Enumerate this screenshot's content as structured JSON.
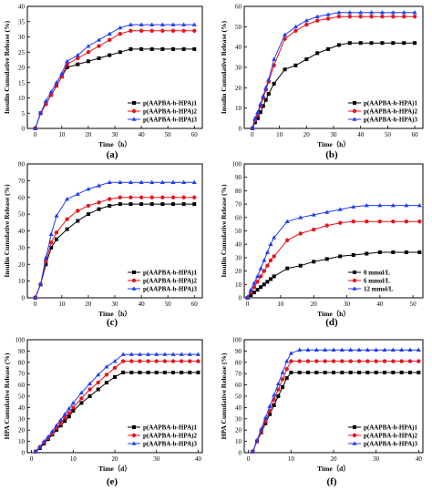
{
  "colors": {
    "series1": "#000000",
    "series2": "#e8141c",
    "series3": "#1f3df0"
  },
  "chart_data": [
    {
      "panel": "(a)",
      "type": "line",
      "xlabel": "Time（h）",
      "ylabel": "Insulin Cumulative Release (%)",
      "xlim": [
        -3,
        63
      ],
      "ylim": [
        0,
        40
      ],
      "xticks": [
        0,
        10,
        20,
        30,
        40,
        50,
        60
      ],
      "yticks": [
        0,
        5,
        10,
        15,
        20,
        25,
        30,
        35,
        40
      ],
      "legend_position": "bottom-right",
      "series": [
        {
          "name": "p(AAPBA-b-HPA)1",
          "marker": "square",
          "color": "#000000",
          "x": [
            0,
            2,
            4,
            6,
            8,
            10,
            12,
            16,
            20,
            24,
            28,
            32,
            36,
            40,
            44,
            48,
            52,
            56,
            60
          ],
          "y": [
            0,
            5,
            8,
            11,
            14,
            17,
            20,
            21,
            22,
            23,
            24,
            25,
            26,
            26,
            26,
            26,
            26,
            26,
            26
          ]
        },
        {
          "name": "p(AAPBA-b-HPA)2",
          "marker": "circle",
          "color": "#e8141c",
          "x": [
            0,
            2,
            4,
            6,
            8,
            10,
            12,
            16,
            20,
            24,
            28,
            32,
            36,
            40,
            44,
            48,
            52,
            56,
            60
          ],
          "y": [
            0,
            5,
            8,
            11,
            14,
            17,
            21,
            23,
            25,
            27,
            29,
            31,
            32,
            32,
            32,
            32,
            32,
            32,
            32
          ]
        },
        {
          "name": "p(AAPBA-b-HPA)3",
          "marker": "triangle",
          "color": "#1f3df0",
          "x": [
            0,
            2,
            4,
            6,
            8,
            10,
            12,
            16,
            20,
            24,
            28,
            32,
            36,
            40,
            44,
            48,
            52,
            56,
            60
          ],
          "y": [
            0,
            5,
            9,
            12,
            15,
            18,
            22,
            24,
            27,
            29,
            31,
            33,
            34,
            34,
            34,
            34,
            34,
            34,
            34
          ]
        }
      ]
    },
    {
      "panel": "(b)",
      "type": "line",
      "xlabel": "Time（h）",
      "ylabel": "Insulin Cumulative Release (%)",
      "xlim": [
        -3,
        63
      ],
      "ylim": [
        0,
        60
      ],
      "xticks": [
        0,
        10,
        20,
        30,
        40,
        50,
        60
      ],
      "yticks": [
        0,
        10,
        20,
        30,
        40,
        50,
        60
      ],
      "legend_position": "bottom-right",
      "series": [
        {
          "name": "p(AAPBA-b-HPA)1",
          "marker": "square",
          "color": "#000000",
          "x": [
            0,
            1,
            2,
            3,
            4,
            5,
            6,
            8,
            12,
            16,
            20,
            24,
            28,
            32,
            36,
            40,
            44,
            48,
            52,
            56,
            60
          ],
          "y": [
            0,
            3,
            5,
            8,
            11,
            14,
            17,
            22,
            29,
            31,
            34,
            37,
            39,
            41,
            42,
            42,
            42,
            42,
            42,
            42,
            42
          ]
        },
        {
          "name": "p(AAPBA-b-HPA)2",
          "marker": "circle",
          "color": "#e8141c",
          "x": [
            0,
            1,
            2,
            3,
            4,
            5,
            6,
            8,
            12,
            16,
            20,
            24,
            28,
            32,
            36,
            40,
            44,
            48,
            52,
            56,
            60
          ],
          "y": [
            0,
            4,
            7,
            11,
            15,
            19,
            23,
            31,
            44,
            48,
            51,
            53,
            54,
            55,
            55,
            55,
            55,
            55,
            55,
            55,
            55
          ]
        },
        {
          "name": "p(AAPBA-b-HPA)3",
          "marker": "triangle",
          "color": "#1f3df0",
          "x": [
            0,
            1,
            2,
            3,
            4,
            5,
            6,
            8,
            12,
            16,
            20,
            24,
            28,
            32,
            36,
            40,
            44,
            48,
            52,
            56,
            60
          ],
          "y": [
            0,
            5,
            8,
            12,
            16,
            20,
            24,
            34,
            46,
            50,
            53,
            55,
            56,
            57,
            57,
            57,
            57,
            57,
            57,
            57,
            57
          ]
        }
      ]
    },
    {
      "panel": "(c)",
      "type": "line",
      "xlabel": "Time（h）",
      "ylabel": "Insulin Cumulative Release (%)",
      "xlim": [
        -3,
        63
      ],
      "ylim": [
        0,
        80
      ],
      "xticks": [
        0,
        10,
        20,
        30,
        40,
        50,
        60
      ],
      "yticks": [
        0,
        10,
        20,
        30,
        40,
        50,
        60,
        70,
        80
      ],
      "legend_position": "bottom-right",
      "series": [
        {
          "name": "p(AAPBA-b-HPA)1",
          "marker": "square",
          "color": "#000000",
          "x": [
            0,
            2,
            4,
            6,
            8,
            12,
            16,
            20,
            24,
            28,
            32,
            36,
            40,
            44,
            48,
            52,
            56,
            60
          ],
          "y": [
            0,
            8,
            20,
            30,
            35,
            41,
            46,
            50,
            53,
            55,
            56,
            56,
            56,
            56,
            56,
            56,
            56,
            56
          ]
        },
        {
          "name": "p(AAPBA-b-HPA)2",
          "marker": "circle",
          "color": "#e8141c",
          "x": [
            0,
            2,
            4,
            6,
            8,
            12,
            16,
            20,
            24,
            28,
            32,
            36,
            40,
            44,
            48,
            52,
            56,
            60
          ],
          "y": [
            0,
            8,
            22,
            33,
            39,
            47,
            52,
            55,
            57,
            59,
            60,
            60,
            60,
            60,
            60,
            60,
            60,
            60
          ]
        },
        {
          "name": "p(AAPBA-b-HPA)3",
          "marker": "triangle",
          "color": "#1f3df0",
          "x": [
            0,
            2,
            4,
            6,
            8,
            12,
            16,
            20,
            24,
            28,
            32,
            36,
            40,
            44,
            48,
            52,
            56,
            60
          ],
          "y": [
            0,
            8,
            24,
            38,
            49,
            59,
            62,
            65,
            67,
            69,
            69,
            69,
            69,
            69,
            69,
            69,
            69,
            69
          ]
        }
      ]
    },
    {
      "panel": "(d)",
      "type": "line",
      "xlabel": "Time（h）",
      "ylabel": "Insulin Cumulative Release (%)",
      "xlim": [
        -1,
        53
      ],
      "ylim": [
        0,
        100
      ],
      "xticks": [
        0,
        10,
        20,
        30,
        40,
        50
      ],
      "yticks": [
        0,
        10,
        20,
        30,
        40,
        50,
        60,
        70,
        80,
        90,
        100
      ],
      "legend_position": "bottom-right",
      "series": [
        {
          "name": "0 mmol/L",
          "marker": "square",
          "color": "#000000",
          "x": [
            0,
            1,
            2,
            3,
            4,
            5,
            6,
            7,
            8,
            12,
            16,
            20,
            24,
            28,
            32,
            36,
            40,
            44,
            48,
            52
          ],
          "y": [
            0,
            2,
            4,
            6,
            8,
            10,
            12,
            14,
            16,
            22,
            24,
            27,
            29,
            31,
            32,
            33,
            34,
            34,
            34,
            34
          ]
        },
        {
          "name": "6 mmol/L",
          "marker": "circle",
          "color": "#e8141c",
          "x": [
            0,
            1,
            2,
            3,
            4,
            5,
            6,
            7,
            8,
            12,
            16,
            20,
            24,
            28,
            32,
            36,
            40,
            44,
            48,
            52
          ],
          "y": [
            0,
            4,
            8,
            12,
            16,
            20,
            24,
            28,
            31,
            43,
            48,
            51,
            54,
            56,
            57,
            57,
            57,
            57,
            57,
            57
          ]
        },
        {
          "name": "12 mmol/L",
          "marker": "triangle",
          "color": "#1f3df0",
          "x": [
            0,
            1,
            2,
            3,
            4,
            5,
            6,
            7,
            8,
            12,
            16,
            20,
            24,
            28,
            32,
            36,
            40,
            44,
            48,
            52
          ],
          "y": [
            0,
            6,
            11,
            16,
            22,
            28,
            34,
            40,
            45,
            57,
            60,
            62,
            64,
            66,
            68,
            69,
            69,
            69,
            69,
            69
          ]
        }
      ]
    },
    {
      "panel": "(e)",
      "type": "line",
      "xlabel": "Time（d）",
      "ylabel": "HPA Cumulative Release (%)",
      "xlim": [
        -1,
        41
      ],
      "ylim": [
        0,
        100
      ],
      "xticks": [
        0,
        10,
        20,
        30,
        40
      ],
      "yticks": [
        0,
        10,
        20,
        30,
        40,
        50,
        60,
        70,
        80,
        90,
        100
      ],
      "legend_position": "bottom-right",
      "series": [
        {
          "name": "p(AAPBA-b-HPA)1",
          "marker": "square",
          "color": "#000000",
          "x": [
            1,
            2,
            3,
            4,
            5,
            6,
            7,
            8,
            9,
            10,
            12,
            14,
            16,
            18,
            20,
            22,
            24,
            26,
            28,
            30,
            32,
            34,
            36,
            38,
            40
          ],
          "y": [
            1,
            4,
            8,
            12,
            16,
            20,
            24,
            28,
            32,
            37,
            44,
            50,
            56,
            62,
            67,
            71,
            71,
            71,
            71,
            71,
            71,
            71,
            71,
            71,
            71
          ]
        },
        {
          "name": "p(AAPBA-b-HPA)2",
          "marker": "circle",
          "color": "#e8141c",
          "x": [
            1,
            2,
            3,
            4,
            5,
            6,
            7,
            8,
            9,
            10,
            12,
            14,
            16,
            18,
            20,
            22,
            24,
            26,
            28,
            30,
            32,
            34,
            36,
            38,
            40
          ],
          "y": [
            1,
            5,
            9,
            13,
            17,
            22,
            26,
            31,
            35,
            40,
            48,
            56,
            62,
            69,
            75,
            81,
            81,
            81,
            81,
            81,
            81,
            81,
            81,
            81,
            81
          ]
        },
        {
          "name": "p(AAPBA-b-HPA)3",
          "marker": "triangle",
          "color": "#1f3df0",
          "x": [
            1,
            2,
            3,
            4,
            5,
            6,
            7,
            8,
            9,
            10,
            12,
            14,
            16,
            18,
            20,
            22,
            24,
            26,
            28,
            30,
            32,
            34,
            36,
            38,
            40
          ],
          "y": [
            1,
            5,
            10,
            14,
            19,
            24,
            29,
            34,
            39,
            44,
            53,
            61,
            69,
            76,
            81,
            87,
            87,
            87,
            87,
            87,
            87,
            87,
            87,
            87,
            87
          ]
        }
      ]
    },
    {
      "panel": "(f)",
      "type": "line",
      "xlabel": "Time（d）",
      "ylabel": "HPA Cumulative Release (%)",
      "xlim": [
        -1,
        41
      ],
      "ylim": [
        0,
        100
      ],
      "xticks": [
        0,
        10,
        20,
        30,
        40
      ],
      "yticks": [
        0,
        10,
        20,
        30,
        40,
        50,
        60,
        70,
        80,
        90,
        100
      ],
      "legend_position": "bottom-right",
      "series": [
        {
          "name": "p(AAPBA-b-HPA)1",
          "marker": "square",
          "color": "#000000",
          "x": [
            1,
            2,
            3,
            4,
            5,
            6,
            7,
            8,
            9,
            10,
            12,
            14,
            16,
            18,
            20,
            22,
            24,
            26,
            28,
            30,
            32,
            34,
            36,
            38,
            40
          ],
          "y": [
            1,
            10,
            18,
            26,
            34,
            42,
            50,
            58,
            66,
            71,
            71,
            71,
            71,
            71,
            71,
            71,
            71,
            71,
            71,
            71,
            71,
            71,
            71,
            71,
            71
          ]
        },
        {
          "name": "p(AAPBA-b-HPA)2",
          "marker": "circle",
          "color": "#e8141c",
          "x": [
            1,
            2,
            3,
            4,
            5,
            6,
            7,
            8,
            9,
            10,
            12,
            14,
            16,
            18,
            20,
            22,
            24,
            26,
            28,
            30,
            32,
            34,
            36,
            38,
            40
          ],
          "y": [
            1,
            10,
            19,
            28,
            37,
            47,
            56,
            65,
            74,
            81,
            81,
            81,
            81,
            81,
            81,
            81,
            81,
            81,
            81,
            81,
            81,
            81,
            81,
            81,
            81
          ]
        },
        {
          "name": "p(AAPBA-b-HPA)3",
          "marker": "triangle",
          "color": "#1f3df0",
          "x": [
            1,
            2,
            3,
            4,
            5,
            6,
            7,
            8,
            9,
            10,
            12,
            14,
            16,
            18,
            20,
            22,
            24,
            26,
            28,
            30,
            32,
            34,
            36,
            38,
            40
          ],
          "y": [
            1,
            11,
            21,
            31,
            41,
            51,
            61,
            71,
            81,
            88,
            91,
            91,
            91,
            91,
            91,
            91,
            91,
            91,
            91,
            91,
            91,
            91,
            91,
            91,
            91
          ]
        }
      ]
    }
  ]
}
